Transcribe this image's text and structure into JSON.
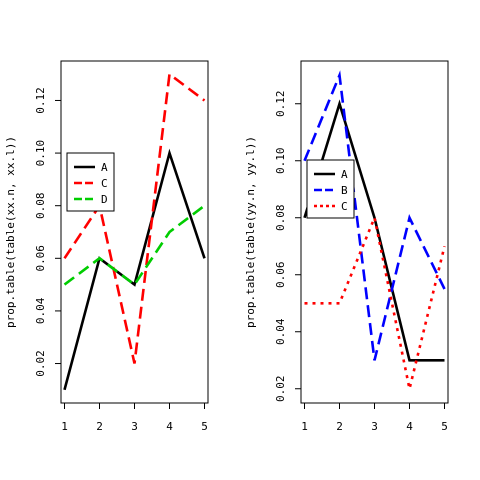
{
  "chart_data": [
    {
      "type": "line",
      "x": [
        1,
        2,
        3,
        4,
        5
      ],
      "xlim": [
        0.9,
        5.1
      ],
      "ylim": [
        0.005,
        0.135
      ],
      "xticks": [
        "1",
        "2",
        "3",
        "4",
        "5"
      ],
      "yticks": [
        "0.02",
        "0.04",
        "0.06",
        "0.08",
        "0.10",
        "0.12"
      ],
      "xlabel": "",
      "ylabel": "prop.table(table(xx.n, xx.l))",
      "legend": {
        "position": "left-middle",
        "entries": [
          "A",
          "C",
          "D"
        ]
      },
      "series": [
        {
          "name": "A",
          "color": "#000000",
          "style": "solid",
          "values": [
            0.01,
            0.06,
            0.05,
            0.1,
            0.06
          ]
        },
        {
          "name": "C",
          "color": "#ff0000",
          "style": "dashed",
          "values": [
            0.06,
            0.08,
            0.02,
            0.13,
            0.12
          ]
        },
        {
          "name": "D",
          "color": "#00cd00",
          "style": "dashed",
          "values": [
            0.05,
            0.06,
            0.05,
            0.07,
            0.08
          ]
        }
      ]
    },
    {
      "type": "line",
      "x": [
        1,
        2,
        3,
        4,
        5
      ],
      "xlim": [
        0.9,
        5.1
      ],
      "ylim": [
        0.015,
        0.135
      ],
      "xticks": [
        "1",
        "2",
        "3",
        "4",
        "5"
      ],
      "yticks": [
        "0.02",
        "0.04",
        "0.06",
        "0.08",
        "0.10",
        "0.12"
      ],
      "xlabel": "",
      "ylabel": "prop.table(table(yy.n, yy.l))",
      "legend": {
        "position": "top-left",
        "entries": [
          "A",
          "B",
          "C"
        ]
      },
      "series": [
        {
          "name": "A",
          "color": "#000000",
          "style": "solid",
          "values": [
            0.08,
            0.12,
            0.08,
            0.03,
            0.03
          ]
        },
        {
          "name": "B",
          "color": "#0000ff",
          "style": "dashed",
          "values": [
            0.1,
            0.13,
            0.03,
            0.08,
            0.055
          ]
        },
        {
          "name": "C",
          "color": "#ff0000",
          "style": "dotted",
          "values": [
            0.05,
            0.05,
            0.08,
            0.02,
            0.07
          ]
        }
      ]
    }
  ]
}
